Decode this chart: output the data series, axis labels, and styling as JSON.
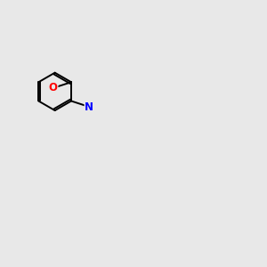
{
  "bg_color": "#e8e8e8",
  "bond_color": "#000000",
  "N_color": "#0000ff",
  "O_color": "#ff0000",
  "H_color": "#808080",
  "font_size": 8.5,
  "figsize": [
    3.0,
    3.0
  ],
  "dpi": 100
}
